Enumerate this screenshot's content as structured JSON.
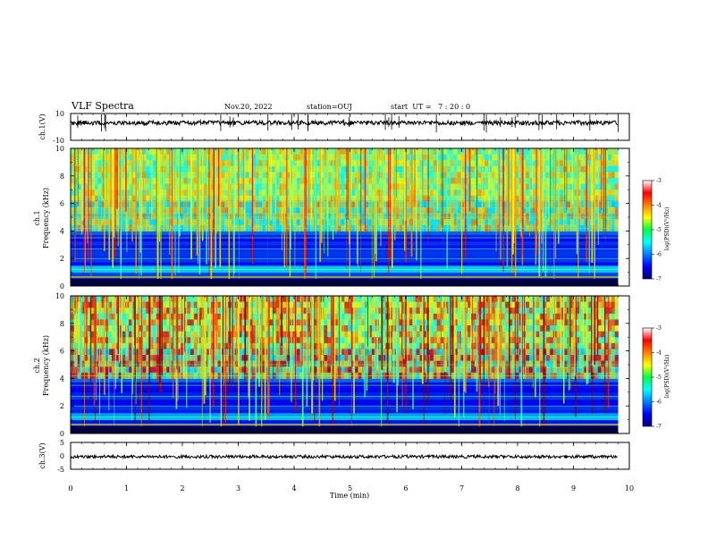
{
  "header": {
    "title": "VLF Spectra",
    "date": "Nov.20, 2022",
    "station": "station=OUJ",
    "start_time": "start  UT =   7 : 20 : 0"
  },
  "chart_data": [
    {
      "type": "line",
      "panel": "ch1",
      "ylabel": "ch.1(V)",
      "ylim": [
        -10,
        10
      ],
      "yticks": [
        "10",
        "-10"
      ],
      "baseline_value": 3,
      "color": "#000000"
    },
    {
      "type": "heatmap",
      "panel": "spec1",
      "ylabel": "ch.1\nFrequency (kHz)",
      "ylim": [
        0,
        10
      ],
      "yticks": [
        "0",
        "2",
        "4",
        "6",
        "8",
        "10"
      ],
      "colorbar": {
        "label": "log(PSD)(V²/Hz)",
        "range": [
          -7,
          -3
        ],
        "ticks": [
          "-3",
          "-4",
          "-5",
          "-6",
          "-7"
        ]
      }
    },
    {
      "type": "heatmap",
      "panel": "spec2",
      "ylabel": "ch.2\nFrequency (kHz)",
      "ylim": [
        0,
        10
      ],
      "yticks": [
        "0",
        "2",
        "4",
        "6",
        "8",
        "10"
      ],
      "colorbar": {
        "label": "log(PSD)(V²/Hz)",
        "range": [
          -7,
          -3
        ],
        "ticks": [
          "-3",
          "-4",
          "-5",
          "-6",
          "-7"
        ]
      }
    },
    {
      "type": "line",
      "panel": "ch3",
      "ylabel": "ch.3(V)",
      "ylim": [
        -5,
        5
      ],
      "yticks": [
        "5",
        "0",
        "-5"
      ],
      "baseline_value": -0.3,
      "color": "#000000"
    }
  ],
  "xaxis": {
    "label": "Time (min)",
    "range": [
      0,
      10
    ],
    "ticks": [
      "0",
      "1",
      "2",
      "3",
      "4",
      "5",
      "6",
      "7",
      "8",
      "9",
      "10"
    ],
    "data_end": 9.8
  },
  "labels": {
    "ch1_ylabel": "ch.1(V)",
    "spec1_ylabel_top": "ch.1",
    "spec1_ylabel_bottom": "Frequency (kHz)",
    "spec2_ylabel_top": "ch.2",
    "spec2_ylabel_bottom": "Frequency (kHz)",
    "ch3_ylabel": "ch.3(V)",
    "cb_label": "log(PSD)(V²/Hz)"
  }
}
